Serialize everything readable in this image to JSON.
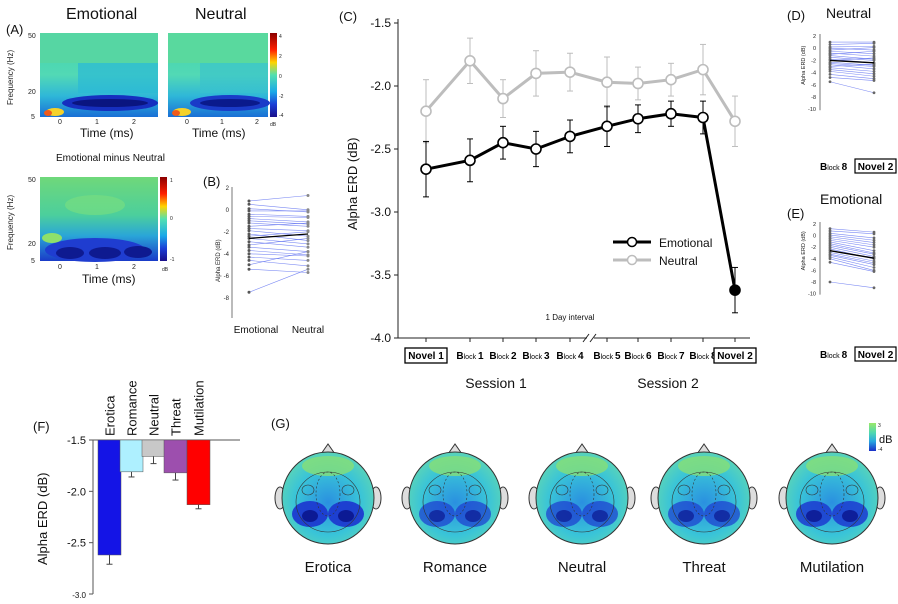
{
  "panels": {
    "A": {
      "label": "(A)",
      "titles": [
        "Emotional",
        "Neutral"
      ],
      "diff_title": "Emotional minus Neutral",
      "ylabel": "Frequency (Hz)",
      "xlabel": "Time (ms)",
      "yticks": [
        "50",
        "20",
        "5"
      ],
      "xticks": [
        "0",
        "1",
        "2"
      ],
      "colorbar1_ticks": [
        "4",
        "2",
        "0",
        "-2",
        "-4"
      ],
      "colorbar1_unit": "dB",
      "colorbar2_ticks": [
        "1",
        "0",
        "-1"
      ],
      "colorbar2_unit": "dB"
    },
    "B": {
      "label": "(B)",
      "ylabel": "Alpha ERD (dB)",
      "categories": [
        "Emotional",
        "Neutral"
      ],
      "yticks": [
        "2",
        "0",
        "-2",
        "-4",
        "-6",
        "-8"
      ]
    },
    "C": {
      "label": "(C)",
      "ylabel": "Alpha ERD (dB)",
      "interval_note": "1 Day interval",
      "session_labels": [
        "Session 1",
        "Session 2"
      ],
      "x_labels": [
        {
          "big": "Novel 1",
          "boxed": true
        },
        {
          "big": "B",
          "small": "lock",
          "num": "1"
        },
        {
          "big": "B",
          "small": "lock",
          "num": "2"
        },
        {
          "big": "B",
          "small": "lock",
          "num": "3"
        },
        {
          "big": "B",
          "small": "lock",
          "num": "4"
        },
        {
          "big": "B",
          "small": "lock",
          "num": "5"
        },
        {
          "big": "B",
          "small": "lock",
          "num": "6"
        },
        {
          "big": "B",
          "small": "lock",
          "num": "7"
        },
        {
          "big": "B",
          "small": "lock",
          "num": "8"
        },
        {
          "big": "Novel 2",
          "boxed": true
        }
      ]
    },
    "D": {
      "label": "(D)",
      "title": "Neutral",
      "ylabel": "Alpha ERD (dB)",
      "yticks": [
        "2",
        "0",
        "-2",
        "-4",
        "-6",
        "-8",
        "-10"
      ],
      "x_left": "8",
      "x_right": "Novel 2"
    },
    "E": {
      "label": "(E)",
      "title": "Emotional",
      "ylabel": "Alpha ERD (dB)",
      "yticks": [
        "2",
        "0",
        "-2",
        "-4",
        "-6",
        "-8",
        "-10"
      ],
      "x_left": "8",
      "x_right": "Novel 2"
    },
    "F": {
      "label": "(F)"
    },
    "G": {
      "label": "(G)",
      "topo_labels": [
        "Erotica",
        "Romance",
        "Neutral",
        "Threat",
        "Mutilation"
      ],
      "colorbar_ticks": [
        "3",
        "-4"
      ],
      "colorbar_unit": "dB"
    }
  },
  "chart_data": [
    {
      "id": "C",
      "type": "line",
      "categories": [
        "Novel 1",
        "Block 1",
        "Block 2",
        "Block 3",
        "Block 4",
        "Block 5",
        "Block 6",
        "Block 7",
        "Block 8",
        "Novel 2"
      ],
      "series": [
        {
          "name": "Emotional",
          "color": "#000000",
          "values": [
            -2.66,
            -2.59,
            -2.45,
            -2.5,
            -2.4,
            -2.32,
            -2.26,
            -2.22,
            -2.25,
            -3.62
          ],
          "errors": [
            0.22,
            0.17,
            0.13,
            0.14,
            0.13,
            0.16,
            0.11,
            0.1,
            0.13,
            0.18
          ]
        },
        {
          "name": "Neutral",
          "color": "#bdbdbd",
          "values": [
            -2.2,
            -1.8,
            -2.1,
            -1.9,
            -1.89,
            -1.97,
            -1.98,
            -1.95,
            -1.87,
            -2.28
          ],
          "errors": [
            0.25,
            0.18,
            0.15,
            0.18,
            0.15,
            0.2,
            0.13,
            0.13,
            0.2,
            0.2
          ]
        }
      ],
      "ylabel": "Alpha ERD (dB)",
      "ylim": [
        -4.0,
        -1.5
      ],
      "yticks": [
        "-1.5",
        "-2.0",
        "-2.5",
        "-3.0",
        "-3.5",
        "-4.0"
      ],
      "legend": "right",
      "axis_break": "between Block 4 and Block 5"
    },
    {
      "id": "F",
      "type": "bar",
      "categories": [
        "Erotica",
        "Romance",
        "Neutral",
        "Threat",
        "Mutilation"
      ],
      "values": [
        -2.62,
        -1.81,
        -1.66,
        -1.82,
        -2.13
      ],
      "errors": [
        0.09,
        0.05,
        0.07,
        0.07,
        0.04
      ],
      "colors": [
        "#1414e6",
        "#aef0ff",
        "#c8c8c8",
        "#9d4fae",
        "#ff0000"
      ],
      "ylabel": "Alpha ERD (dB)",
      "ylim": [
        -3.0,
        -1.5
      ],
      "yticks": [
        "-1.5",
        "-2.0",
        "-2.5",
        "-3.0"
      ]
    }
  ]
}
